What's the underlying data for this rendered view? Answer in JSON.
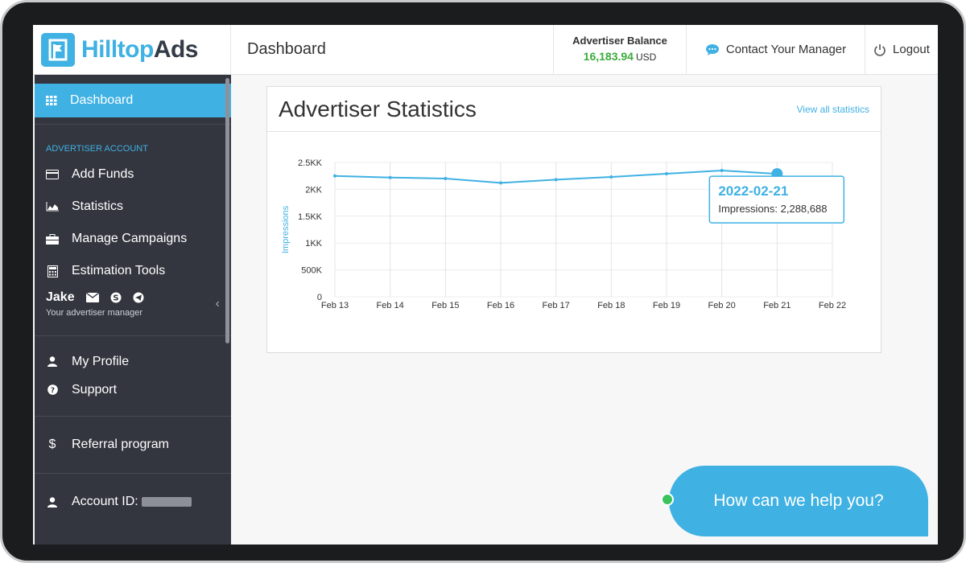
{
  "brand": {
    "name_part1": "Hilltop",
    "name_part2": "Ads"
  },
  "header": {
    "page_title": "Dashboard",
    "balance_label": "Advertiser Balance",
    "balance_value": "16,183.94",
    "balance_currency": "USD",
    "contact_label": "Contact Your Manager",
    "logout_label": "Logout"
  },
  "sidebar": {
    "active_item": "Dashboard",
    "section_title": "ADVERTISER ACCOUNT",
    "account_items": [
      {
        "label": "Add Funds",
        "icon": "credit-card-icon"
      },
      {
        "label": "Statistics",
        "icon": "area-chart-icon"
      },
      {
        "label": "Manage Campaigns",
        "icon": "briefcase-icon"
      },
      {
        "label": "Estimation Tools",
        "icon": "calculator-icon"
      }
    ],
    "manager_name": "Jake",
    "manager_sub": "Your advertiser manager",
    "profile_items": [
      {
        "label": "My Profile",
        "icon": "user-icon"
      },
      {
        "label": "Support",
        "icon": "question-circle-icon"
      }
    ],
    "referral_label": "Referral program",
    "account_id_label": "Account ID:"
  },
  "stats": {
    "title": "Advertiser Statistics",
    "link": "View all statistics"
  },
  "chart_data": {
    "type": "line",
    "title": "",
    "ylabel": "Impressions",
    "xlabel": "",
    "categories": [
      "Feb 13",
      "Feb 14",
      "Feb 15",
      "Feb 16",
      "Feb 17",
      "Feb 18",
      "Feb 19",
      "Feb 20",
      "Feb 21",
      "Feb 22"
    ],
    "y_tick_labels": [
      "0",
      "500K",
      "1KK",
      "1.5KK",
      "2KK",
      "2.5KK"
    ],
    "ylim": [
      0,
      2500000
    ],
    "series": [
      {
        "values": [
          2250000,
          2220000,
          2200000,
          2120000,
          2180000,
          2230000,
          2290000,
          2350000,
          2288688,
          null
        ]
      }
    ],
    "tooltip": {
      "date": "2022-02-21",
      "text": "Impressions: 2,288,688"
    },
    "grid": true,
    "color": "#3fb1e3"
  },
  "chat": {
    "prompt": "How can we help you?"
  }
}
